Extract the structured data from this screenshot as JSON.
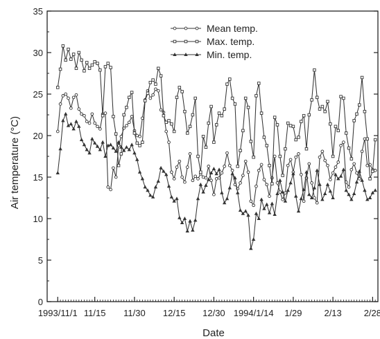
{
  "chart_data": {
    "type": "line",
    "title": "",
    "xlabel": "Date",
    "ylabel": "Air temperature (°C)",
    "ylim": [
      0,
      35
    ],
    "yticks": [
      "0",
      "5",
      "10",
      "15",
      "20",
      "25",
      "30",
      "35"
    ],
    "xlim": [
      "1993-10-28",
      "1994-03-02"
    ],
    "xticks": [
      {
        "date": "1993-11-01",
        "label": "1993/11/1"
      },
      {
        "date": "1993-11-15",
        "label": "11/15"
      },
      {
        "date": "1993-11-30",
        "label": "11/30"
      },
      {
        "date": "1993-12-15",
        "label": "12/15"
      },
      {
        "date": "1993-12-30",
        "label": "12/30"
      },
      {
        "date": "1994-01-14",
        "label": "1994/1/14"
      },
      {
        "date": "1994-01-29",
        "label": "1/29"
      },
      {
        "date": "1994-02-13",
        "label": "2/13"
      },
      {
        "date": "1994-02-28",
        "label": "2/28"
      }
    ],
    "grid": false,
    "legend_position": "top-center",
    "x": [
      "1993-11-01",
      "1993-11-02",
      "1993-11-03",
      "1993-11-04",
      "1993-11-05",
      "1993-11-06",
      "1993-11-07",
      "1993-11-08",
      "1993-11-09",
      "1993-11-10",
      "1993-11-11",
      "1993-11-12",
      "1993-11-13",
      "1993-11-14",
      "1993-11-15",
      "1993-11-16",
      "1993-11-17",
      "1993-11-18",
      "1993-11-19",
      "1993-11-20",
      "1993-11-21",
      "1993-11-22",
      "1993-11-23",
      "1993-11-24",
      "1993-11-25",
      "1993-11-26",
      "1993-11-27",
      "1993-11-28",
      "1993-11-29",
      "1993-11-30",
      "1993-12-01",
      "1993-12-02",
      "1993-12-03",
      "1993-12-04",
      "1993-12-05",
      "1993-12-06",
      "1993-12-07",
      "1993-12-08",
      "1993-12-09",
      "1993-12-10",
      "1993-12-11",
      "1993-12-12",
      "1993-12-13",
      "1993-12-14",
      "1993-12-15",
      "1993-12-16",
      "1993-12-17",
      "1993-12-18",
      "1993-12-19",
      "1993-12-20",
      "1993-12-21",
      "1993-12-22",
      "1993-12-23",
      "1993-12-24",
      "1993-12-25",
      "1993-12-26",
      "1993-12-27",
      "1993-12-28",
      "1993-12-29",
      "1993-12-30",
      "1993-12-31",
      "1994-01-01",
      "1994-01-02",
      "1994-01-03",
      "1994-01-04",
      "1994-01-05",
      "1994-01-06",
      "1994-01-07",
      "1994-01-08",
      "1994-01-09",
      "1994-01-10",
      "1994-01-11",
      "1994-01-12",
      "1994-01-13",
      "1994-01-14",
      "1994-01-15",
      "1994-01-16",
      "1994-01-17",
      "1994-01-18",
      "1994-01-19",
      "1994-01-20",
      "1994-01-21",
      "1994-01-22",
      "1994-01-23",
      "1994-01-24",
      "1994-01-25",
      "1994-01-26",
      "1994-01-27",
      "1994-01-28",
      "1994-01-29",
      "1994-01-30",
      "1994-01-31",
      "1994-02-01",
      "1994-02-02",
      "1994-02-03",
      "1994-02-04",
      "1994-02-05",
      "1994-02-06",
      "1994-02-07",
      "1994-02-08",
      "1994-02-09",
      "1994-02-10",
      "1994-02-11",
      "1994-02-12",
      "1994-02-13",
      "1994-02-14",
      "1994-02-15",
      "1994-02-16",
      "1994-02-17",
      "1994-02-18",
      "1994-02-19",
      "1994-02-20",
      "1994-02-21",
      "1994-02-22",
      "1994-02-23",
      "1994-02-24",
      "1994-02-25",
      "1994-02-26",
      "1994-02-27",
      "1994-02-28",
      "1994-03-01"
    ],
    "series": [
      {
        "name": "Mean temp.",
        "marker": "circle",
        "values": [
          20.5,
          23.8,
          24.8,
          25.0,
          24.5,
          23.3,
          24.6,
          24.9,
          23.2,
          22.6,
          22.4,
          21.7,
          21.5,
          22.6,
          21.5,
          21.1,
          20.8,
          22.6,
          22.7,
          13.8,
          13.5,
          16.1,
          15.0,
          18.8,
          19.9,
          20.9,
          21.2,
          21.6,
          22.3,
          20.6,
          20.0,
          19.9,
          22.1,
          24.3,
          25.4,
          24.5,
          24.9,
          25.6,
          25.4,
          23.1,
          22.8,
          20.5,
          19.2,
          15.6,
          14.8,
          16.2,
          16.9,
          15.0,
          14.4,
          16.2,
          17.8,
          14.6,
          15.1,
          14.8,
          15.4,
          15.0,
          14.9,
          16.3,
          14.6,
          12.9,
          14.8,
          14.9,
          15.5,
          16.3,
          17.9,
          16.4,
          15.8,
          14.1,
          13.6,
          14.3,
          15.2,
          16.9,
          15.6,
          12.1,
          11.6,
          13.9,
          15.8,
          16.5,
          14.7,
          14.1,
          12.7,
          14.9,
          17.5,
          14.3,
          13.2,
          12.3,
          13.1,
          16.4,
          17.1,
          15.6,
          17.4,
          17.8,
          15.3,
          12.1,
          14.9,
          16.6,
          14.3,
          12.5,
          11.9,
          17.4,
          18.1,
          17.0,
          16.4,
          14.7,
          15.5,
          16.2,
          16.8,
          18.8,
          19.2,
          14.4,
          13.8,
          15.9,
          16.6,
          15.5,
          14.8,
          18.1,
          19.6,
          16.4,
          16.5,
          15.9,
          15.8
        ]
      },
      {
        "name": "Max. temp.",
        "marker": "square",
        "values": [
          25.8,
          28.0,
          30.8,
          29.1,
          30.4,
          29.2,
          29.8,
          28.1,
          30.0,
          29.1,
          27.8,
          28.8,
          28.1,
          28.5,
          28.9,
          28.7,
          27.9,
          22.4,
          28.3,
          28.7,
          28.2,
          22.3,
          20.2,
          16.4,
          17.8,
          22.5,
          23.4,
          24.6,
          25.2,
          20.3,
          19.1,
          18.8,
          19.2,
          24.2,
          25.1,
          26.4,
          26.7,
          26.2,
          28.1,
          27.2,
          22.4,
          21.6,
          21.8,
          21.4,
          20.5,
          24.6,
          25.8,
          25.3,
          22.9,
          20.3,
          21.1,
          22.5,
          24.5,
          17.5,
          15.6,
          19.9,
          18.6,
          21.5,
          23.5,
          19.2,
          21.3,
          22.7,
          22.4,
          23.2,
          26.2,
          26.8,
          24.5,
          23.8,
          16.3,
          18.2,
          20.6,
          24.5,
          23.4,
          19.3,
          17.4,
          24.8,
          26.3,
          22.7,
          19.8,
          18.8,
          16.4,
          14.2,
          22.2,
          21.3,
          17.5,
          15.2,
          18.4,
          21.5,
          21.2,
          21.1,
          19.5,
          19.8,
          21.7,
          22.4,
          18.4,
          22.5,
          24.3,
          27.9,
          24.6,
          23.2,
          23.5,
          22.9,
          24.1,
          21.4,
          17.5,
          21.1,
          20.6,
          24.7,
          24.5,
          20.3,
          18.5,
          17.2,
          21.8,
          22.6,
          23.7,
          27.0,
          22.9,
          19.6,
          14.8,
          15.7,
          19.5
        ]
      },
      {
        "name": "Min. temp.",
        "marker": "triangle",
        "values": [
          15.5,
          18.4,
          21.8,
          22.6,
          21.2,
          21.4,
          20.8,
          21.7,
          21.1,
          19.5,
          18.9,
          18.3,
          17.9,
          19.6,
          19.1,
          18.7,
          18.3,
          19.2,
          17.5,
          18.8,
          18.9,
          18.5,
          18.1,
          19.2,
          18.6,
          18.2,
          18.6,
          18.3,
          18.9,
          17.9,
          17.1,
          15.6,
          14.8,
          13.8,
          13.4,
          12.8,
          12.6,
          13.8,
          14.5,
          16.1,
          15.7,
          15.3,
          13.9,
          12.6,
          12.1,
          12.4,
          10.1,
          9.5,
          10.0,
          8.5,
          9.7,
          8.6,
          9.8,
          12.4,
          14.1,
          13.2,
          14.0,
          14.7,
          15.5,
          16.0,
          15.4,
          15.9,
          13.1,
          11.9,
          12.4,
          13.7,
          15.4,
          14.9,
          13.1,
          11.0,
          10.6,
          10.9,
          10.4,
          6.4,
          7.5,
          10.6,
          10.0,
          12.3,
          11.2,
          11.7,
          10.7,
          11.8,
          10.5,
          13.0,
          14.6,
          13.2,
          12.1,
          13.4,
          14.3,
          15.4,
          12.7,
          10.9,
          12.4,
          13.5,
          15.6,
          12.9,
          12.5,
          13.7,
          15.8,
          14.1,
          12.3,
          13.0,
          14.1,
          13.3,
          12.5,
          15.3,
          14.8,
          15.1,
          15.9,
          13.4,
          12.9,
          12.3,
          13.0,
          14.4,
          15.7,
          14.6,
          13.4,
          12.3,
          12.5,
          13.1,
          13.4
        ]
      }
    ]
  }
}
